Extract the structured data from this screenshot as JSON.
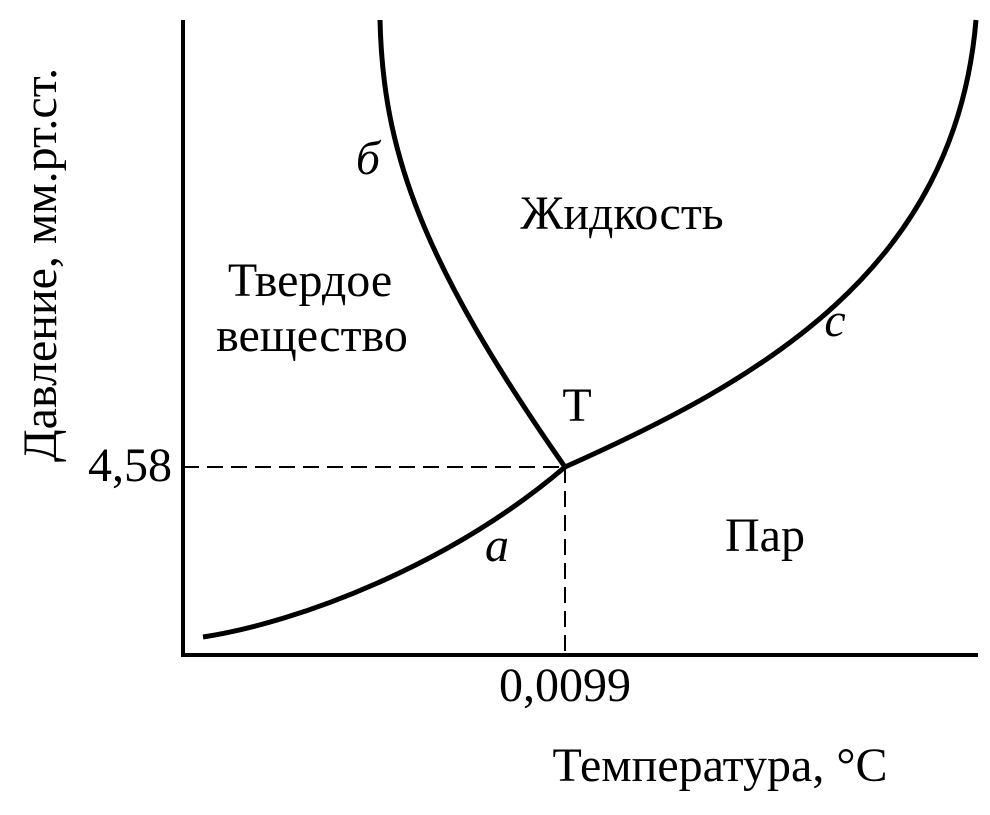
{
  "axes": {
    "y_label": "Давление, мм.рт.ст.",
    "x_label": "Температура, °C",
    "y_tick": "4,58",
    "x_tick": "0,0099"
  },
  "regions": {
    "liquid": "Жидкость",
    "solid": [
      "Твердое",
      "вещество"
    ],
    "vapor": "Пар"
  },
  "triple_point": "Т",
  "curves": {
    "melting": "б",
    "sublimation": "a",
    "vaporization": "c"
  }
}
